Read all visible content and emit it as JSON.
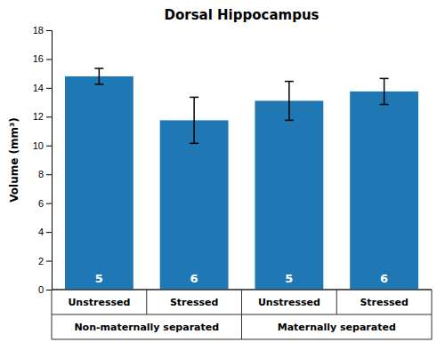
{
  "chart_data": {
    "type": "bar",
    "title": "Dorsal Hippocampus",
    "ylabel": "Volume (mm³)",
    "categories": [
      "Unstressed",
      "Stressed",
      "Unstressed",
      "Stressed"
    ],
    "category_groups": [
      "Non-maternally separated",
      "Maternally separated"
    ],
    "values": [
      14.8,
      11.75,
      13.1,
      13.75
    ],
    "errors": [
      0.55,
      1.6,
      1.35,
      0.9
    ],
    "n": [
      5,
      6,
      5,
      6
    ],
    "ylim": [
      0,
      18
    ],
    "yticks": [
      0,
      2,
      4,
      6,
      8,
      10,
      12,
      14,
      16,
      18
    ]
  }
}
